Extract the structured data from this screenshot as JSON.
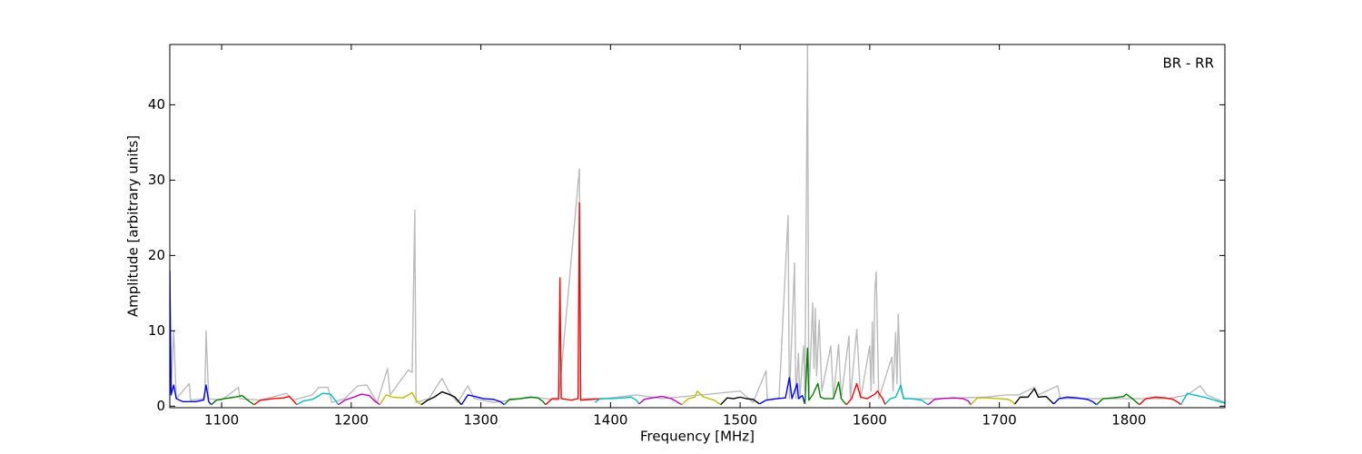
{
  "chart_data": {
    "type": "line",
    "x_label": "Frequency [MHz]",
    "y_label": "Amplitude [arbitrary units]",
    "annotation": "BR - RR",
    "xlim": [
      1060,
      1874
    ],
    "ylim": [
      -0.2,
      48
    ],
    "xticks": [
      1100,
      1200,
      1300,
      1400,
      1500,
      1600,
      1700,
      1800
    ],
    "yticks": [
      0,
      10,
      20,
      30,
      40
    ],
    "grid": false,
    "series": [
      {
        "color": "#bbbbbb",
        "x": [
          1060,
          1061,
          1063,
          1065,
          1075,
          1076,
          1087,
          1088,
          1090,
          1100,
          1113,
          1114,
          1130,
          1150,
          1155,
          1170,
          1175,
          1182,
          1185,
          1195,
          1205,
          1212,
          1220,
          1228,
          1230,
          1244,
          1247,
          1249,
          1250,
          1260,
          1270,
          1275,
          1282,
          1290,
          1295,
          1310,
          1340,
          1360,
          1376,
          1377,
          1395,
          1420,
          1440,
          1470,
          1500,
          1510,
          1520,
          1521,
          1530,
          1537,
          1538,
          1542,
          1543,
          1545,
          1546,
          1549,
          1550,
          1552,
          1553,
          1556,
          1557,
          1558,
          1559,
          1561,
          1563,
          1570,
          1572,
          1576,
          1578,
          1584,
          1585,
          1590,
          1593,
          1600,
          1601,
          1602,
          1603,
          1604,
          1605,
          1607,
          1617,
          1618,
          1620,
          1621,
          1622,
          1624,
          1627,
          1650,
          1690,
          1705,
          1715,
          1727,
          1730,
          1745,
          1747,
          1760,
          1780,
          1800,
          1830,
          1845,
          1855,
          1860,
          1874
        ],
        "values": [
          18,
          2,
          10,
          1,
          3,
          0.8,
          1,
          10,
          1,
          0.8,
          2.5,
          1,
          0.8,
          1.7,
          0.8,
          1.5,
          2.5,
          2.5,
          0.5,
          1,
          2.7,
          2.8,
          0.5,
          5,
          1.5,
          4.8,
          4.5,
          26,
          0.5,
          1,
          3.7,
          2,
          0.5,
          2.7,
          1,
          0.5,
          1.2,
          0.8,
          31.5,
          1,
          1,
          1.5,
          1,
          1.5,
          2,
          0.5,
          4.7,
          0.8,
          1,
          25.3,
          1,
          19,
          1,
          7,
          1,
          8,
          2,
          48,
          1,
          13.7,
          5,
          13,
          4,
          11.4,
          2,
          8,
          1,
          8.2,
          1,
          9.3,
          1,
          10.2,
          1,
          8,
          2,
          11.2,
          3,
          15.5,
          17.8,
          1,
          6.5,
          2,
          9.8,
          3,
          12.2,
          2,
          1,
          1,
          1.2,
          1.5,
          1.5,
          2.5,
          1.5,
          2.7,
          1,
          1,
          1,
          1,
          1,
          1.5,
          2.7,
          1.5,
          0.5
        ]
      },
      {
        "color": "#0000ff",
        "x": [
          1060,
          1061,
          1063,
          1065,
          1070,
          1080,
          1086,
          1088,
          1090,
          1092
        ],
        "values": [
          18,
          1.5,
          2.8,
          1,
          0.6,
          0.6,
          0.8,
          2.8,
          0.6,
          0.2
        ]
      },
      {
        "color": "#008000",
        "x": [
          1092,
          1096,
          1102,
          1110,
          1116,
          1120,
          1125
        ],
        "values": [
          0.2,
          0.8,
          1,
          1.2,
          1.4,
          0.8,
          0.2
        ]
      },
      {
        "color": "#ff0000",
        "x": [
          1125,
          1130,
          1140,
          1148,
          1152,
          1156,
          1158
        ],
        "values": [
          0.2,
          0.8,
          1,
          1.1,
          1.3,
          0.6,
          0.2
        ]
      },
      {
        "color": "#00bfbf",
        "x": [
          1158,
          1163,
          1170,
          1178,
          1184,
          1188,
          1190
        ],
        "values": [
          0.2,
          0.7,
          0.9,
          1.7,
          1.6,
          0.7,
          0.2
        ]
      },
      {
        "color": "#bf00bf",
        "x": [
          1190,
          1195,
          1202,
          1208,
          1214,
          1218,
          1222
        ],
        "values": [
          0.2,
          0.8,
          1.2,
          1.6,
          1.4,
          0.7,
          0.2
        ]
      },
      {
        "color": "#bfbf00",
        "x": [
          1222,
          1227,
          1232,
          1240,
          1247,
          1250,
          1254
        ],
        "values": [
          0.2,
          1.5,
          1.2,
          1.1,
          1.8,
          0.8,
          0.2
        ]
      },
      {
        "color": "#000000",
        "x": [
          1254,
          1259,
          1264,
          1270,
          1275,
          1280,
          1285
        ],
        "values": [
          0.2,
          0.8,
          1.2,
          1.9,
          1.6,
          1.2,
          0.2
        ]
      },
      {
        "color": "#0000ff",
        "x": [
          1285,
          1290,
          1295,
          1302,
          1310,
          1315,
          1318
        ],
        "values": [
          0.2,
          1.5,
          1.3,
          1,
          0.9,
          0.6,
          0.2
        ]
      },
      {
        "color": "#008000",
        "x": [
          1318,
          1322,
          1330,
          1338,
          1344,
          1348,
          1350
        ],
        "values": [
          0.2,
          0.9,
          1,
          1.2,
          1.1,
          0.6,
          0.2
        ]
      },
      {
        "color": "#ff0000",
        "x": [
          1350,
          1355,
          1360,
          1361,
          1362,
          1370,
          1375,
          1376,
          1377,
          1385,
          1394
        ],
        "values": [
          0.2,
          1,
          1,
          17,
          1,
          0.8,
          1,
          27,
          0.8,
          0.9,
          1
        ]
      },
      {
        "color": "#00bfbf",
        "x": [
          1388,
          1392,
          1400,
          1410,
          1416,
          1420,
          1422
        ],
        "values": [
          0.5,
          1,
          1,
          1.1,
          1.2,
          0.8,
          0.3
        ]
      },
      {
        "color": "#bf00bf",
        "x": [
          1422,
          1426,
          1432,
          1440,
          1447,
          1452,
          1455
        ],
        "values": [
          0.3,
          0.9,
          1.1,
          1.3,
          1,
          0.5,
          0.2
        ]
      },
      {
        "color": "#bfbf00",
        "x": [
          1455,
          1460,
          1465,
          1467,
          1472,
          1480,
          1485
        ],
        "values": [
          0.2,
          1,
          1.2,
          2,
          1.2,
          0.8,
          0.2
        ]
      },
      {
        "color": "#000000",
        "x": [
          1485,
          1490,
          1495,
          1500,
          1505,
          1510,
          1515
        ],
        "values": [
          0.2,
          1.1,
          1,
          1.2,
          1,
          0.9,
          0.3
        ]
      },
      {
        "color": "#0000ff",
        "x": [
          1515,
          1520,
          1528,
          1535,
          1538,
          1540,
          1544,
          1545,
          1548,
          1550
        ],
        "values": [
          0.3,
          0.8,
          1,
          1.1,
          3.8,
          1,
          3,
          1,
          1.4,
          0.3
        ]
      },
      {
        "color": "#008000",
        "x": [
          1550,
          1552,
          1553,
          1556,
          1560,
          1562,
          1565,
          1572,
          1576,
          1578,
          1582
        ],
        "values": [
          0.3,
          7.7,
          0.8,
          1.5,
          3,
          1.2,
          1,
          1,
          3.2,
          1,
          0.2
        ]
      },
      {
        "color": "#ff0000",
        "x": [
          1582,
          1586,
          1590,
          1593,
          1598,
          1604,
          1606,
          1610,
          1612
        ],
        "values": [
          0.2,
          1,
          3,
          1.2,
          1,
          1.6,
          2,
          1,
          0.2
        ]
      },
      {
        "color": "#00bfbf",
        "x": [
          1612,
          1616,
          1620,
          1624,
          1626,
          1632,
          1640,
          1645
        ],
        "values": [
          0.3,
          1,
          1.2,
          2.8,
          1,
          1,
          0.8,
          0.2
        ]
      },
      {
        "color": "#bf00bf",
        "x": [
          1645,
          1650,
          1655,
          1665,
          1672,
          1676,
          1678
        ],
        "values": [
          0.2,
          0.9,
          1,
          1.1,
          1,
          0.7,
          0.2
        ]
      },
      {
        "color": "#bfbf00",
        "x": [
          1678,
          1683,
          1690,
          1700,
          1707,
          1710,
          1712
        ],
        "values": [
          0.2,
          1.1,
          1.1,
          1,
          0.9,
          0.6,
          0.2
        ]
      },
      {
        "color": "#000000",
        "x": [
          1712,
          1716,
          1722,
          1727,
          1730,
          1736,
          1742
        ],
        "values": [
          0.3,
          1.2,
          1.2,
          2.3,
          1.2,
          1.3,
          0.3
        ]
      },
      {
        "color": "#0000ff",
        "x": [
          1742,
          1746,
          1752,
          1760,
          1768,
          1772,
          1775
        ],
        "values": [
          0.3,
          1,
          1.2,
          1.1,
          0.9,
          0.6,
          0.2
        ]
      },
      {
        "color": "#008000",
        "x": [
          1775,
          1780,
          1788,
          1796,
          1798,
          1804,
          1808
        ],
        "values": [
          0.2,
          1,
          1.1,
          1.3,
          1.6,
          0.8,
          0.2
        ]
      },
      {
        "color": "#ff0000",
        "x": [
          1808,
          1813,
          1820,
          1828,
          1834,
          1838,
          1840
        ],
        "values": [
          0.2,
          1,
          1.2,
          1.1,
          0.9,
          0.5,
          0.2
        ]
      },
      {
        "color": "#00bfbf",
        "x": [
          1840,
          1845,
          1850,
          1858,
          1866,
          1874
        ],
        "values": [
          0.2,
          1.7,
          1.5,
          1.2,
          0.8,
          0.4
        ]
      }
    ]
  }
}
